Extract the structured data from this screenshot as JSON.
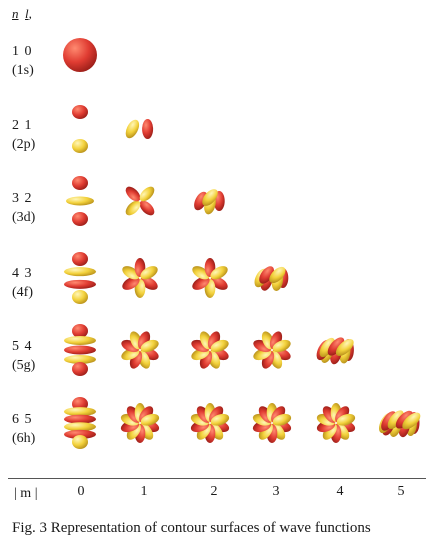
{
  "header": {
    "n": "n",
    "l": "l"
  },
  "rows": [
    {
      "nl": "1  0",
      "orbital": "(1s)",
      "count": 1
    },
    {
      "nl": "2  1",
      "orbital": "(2p)",
      "count": 2
    },
    {
      "nl": "3  2",
      "orbital": "(3d)",
      "count": 3
    },
    {
      "nl": "4  3",
      "orbital": "(4f)",
      "count": 4
    },
    {
      "nl": "5  4",
      "orbital": "(5g)",
      "count": 5
    },
    {
      "nl": "6  5",
      "orbital": "(6h)",
      "count": 6
    }
  ],
  "axis": {
    "label": "| m |",
    "ticks": [
      "0",
      "1",
      "2",
      "3",
      "4",
      "5"
    ]
  },
  "caption": "Fig. 3  Representation of contour surfaces of wave functions",
  "colors": {
    "positive_lobe": "#e03c32",
    "negative_lobe": "#f3d23c",
    "shade": "#9a1e18"
  }
}
